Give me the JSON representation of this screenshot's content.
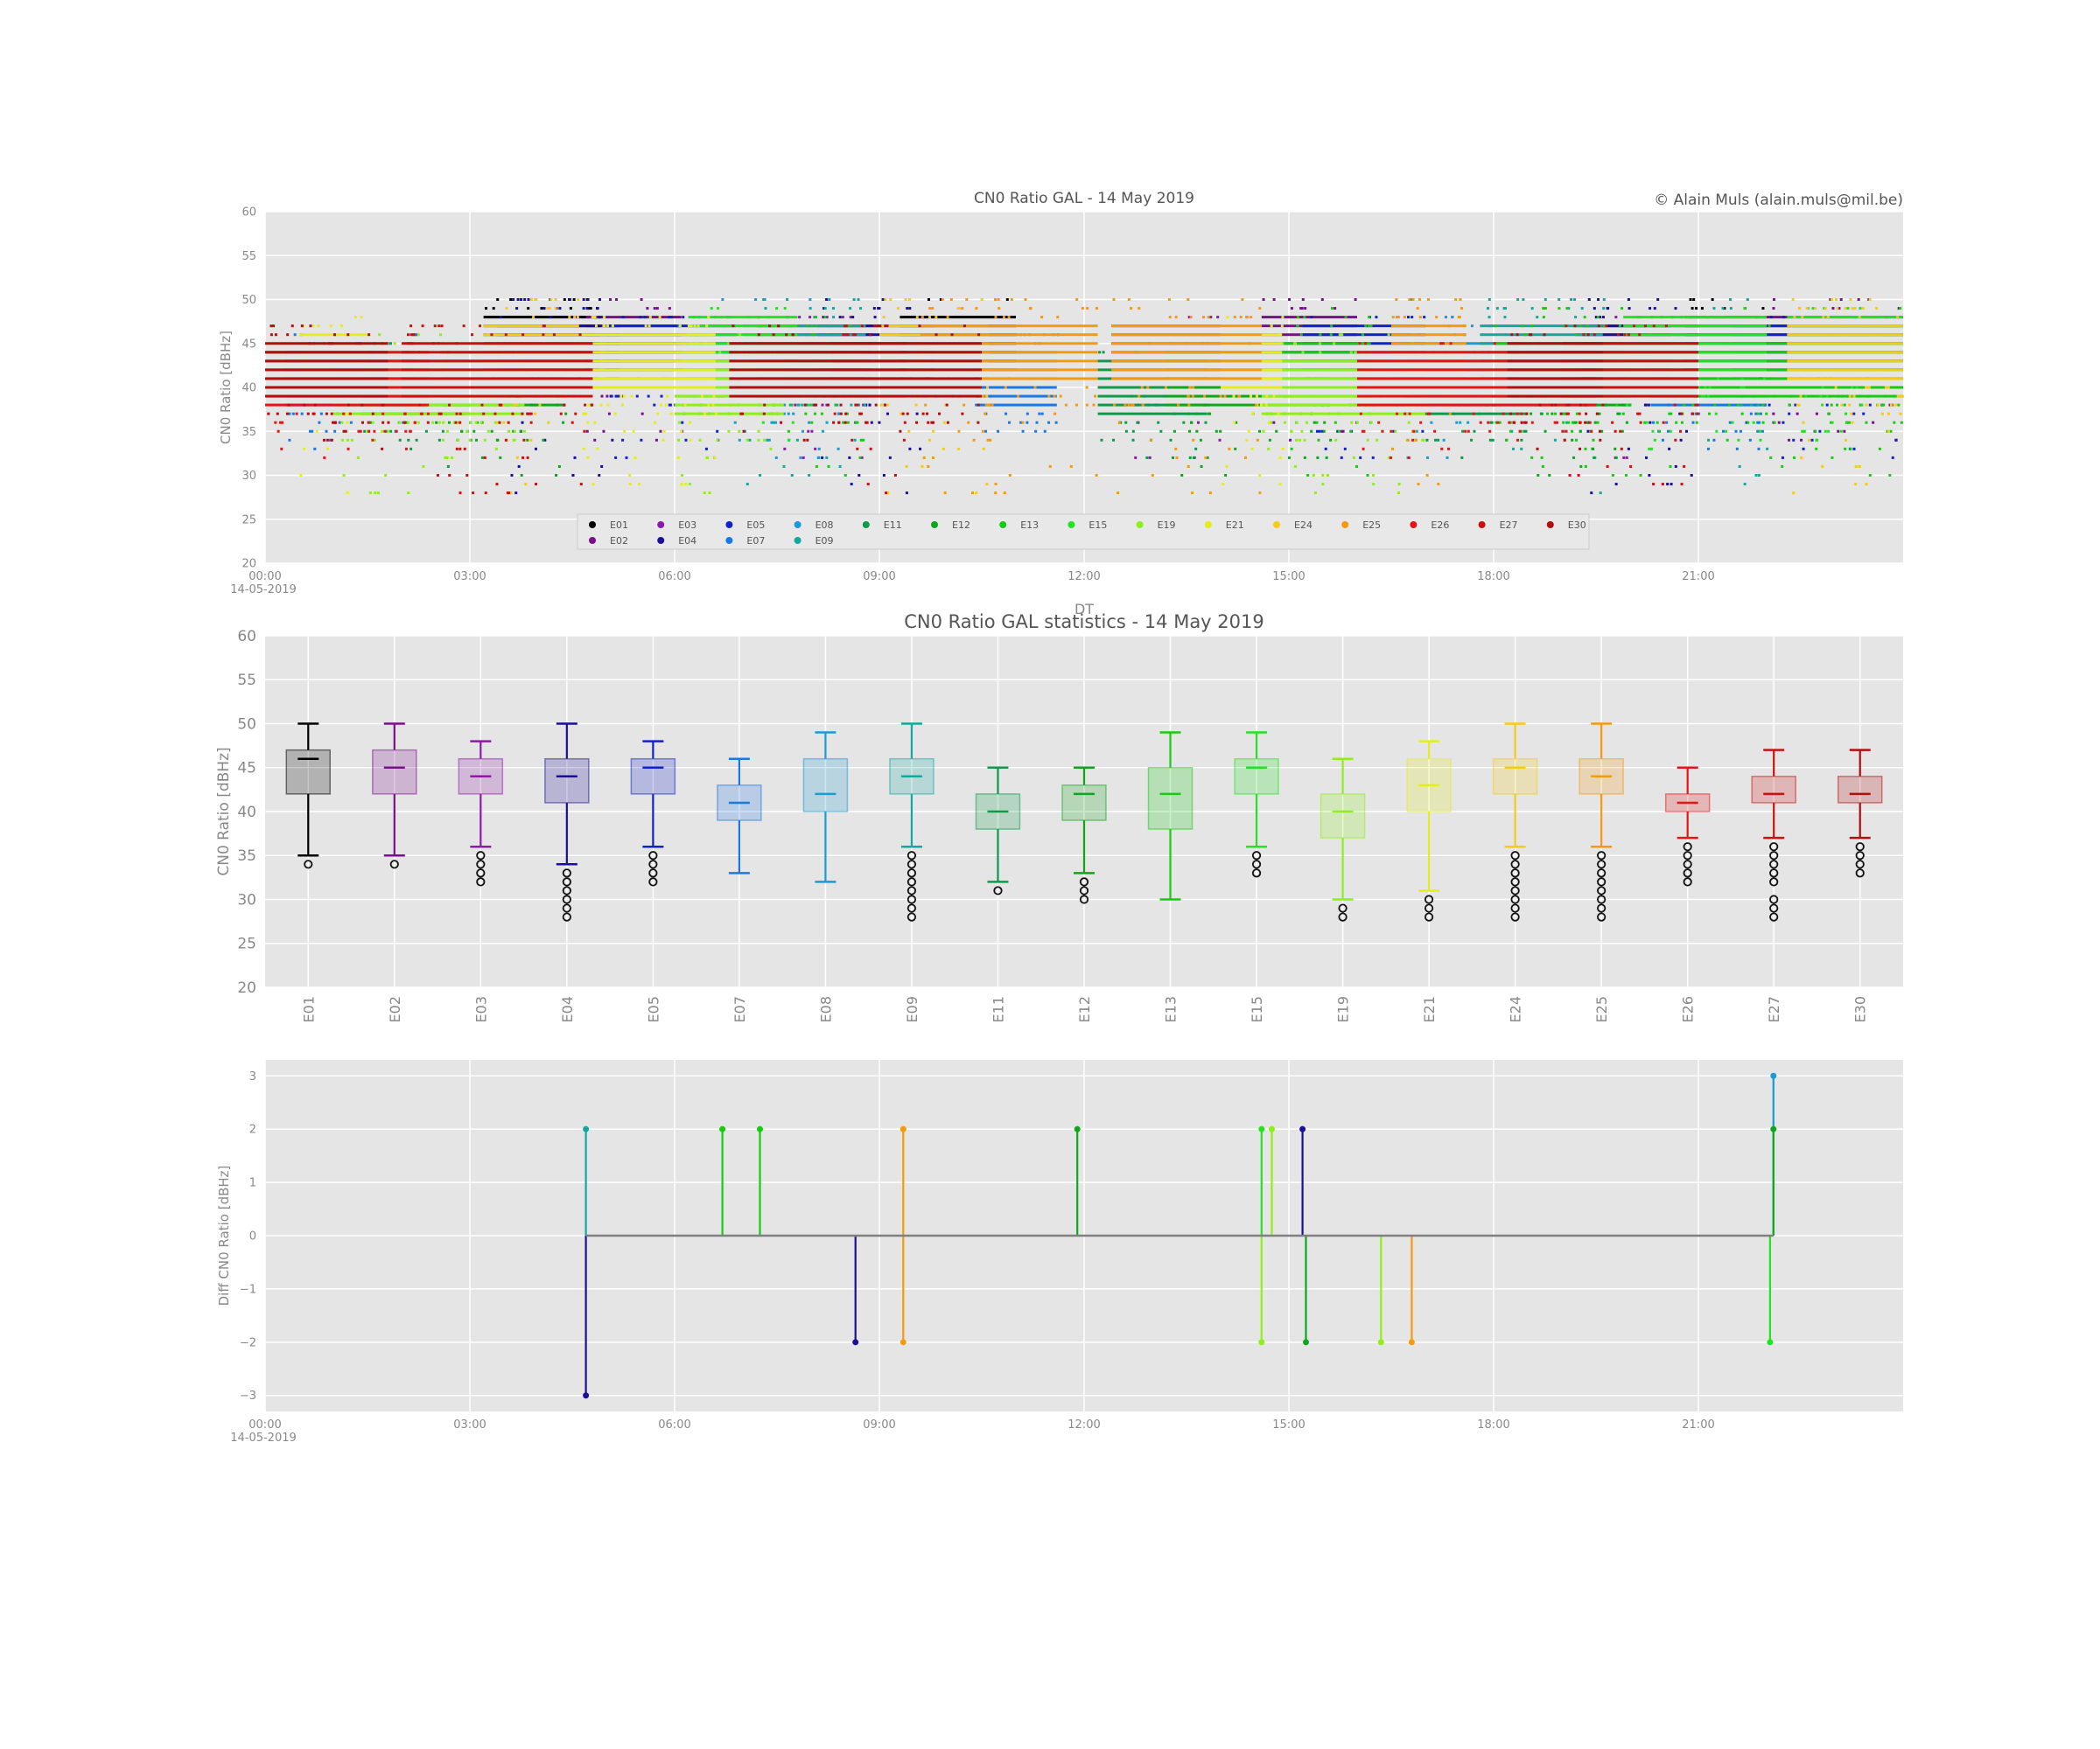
{
  "copyright": "© Alain Muls (alain.muls@mil.be)",
  "colors": {
    "E01": "#000000",
    "E02": "#7a0f8c",
    "E03": "#8b1aa8",
    "E04": "#1a0f99",
    "E05": "#0f22cc",
    "E07": "#1a78e6",
    "E08": "#1a9ad6",
    "E09": "#12a89e",
    "E11": "#0d9a4a",
    "E12": "#0ea71c",
    "E13": "#16cc0f",
    "E15": "#1fe51f",
    "E19": "#8ef01a",
    "E21": "#e6ee1a",
    "E24": "#f5cc14",
    "E25": "#f59a0f",
    "E26": "#e61414",
    "E27": "#cc0f0f",
    "E30": "#b30d0d"
  },
  "chart_data": [
    {
      "type": "scatter",
      "title": "CN0 Ratio GAL - 14 May 2019",
      "xlabel": "DT",
      "ylabel": "CN0 Ratio [dBHz]",
      "ylim": [
        20,
        60
      ],
      "yticks": [
        "20",
        "25",
        "30",
        "35",
        "40",
        "45",
        "50",
        "55",
        "60"
      ],
      "xticks": [
        "00:00",
        "03:00",
        "06:00",
        "09:00",
        "12:00",
        "15:00",
        "18:00",
        "21:00"
      ],
      "xdate": "14-05-2019",
      "legend_position": "lower-center",
      "legend": [
        "E01",
        "E02",
        "E03",
        "E04",
        "E05",
        "E07",
        "E08",
        "E09",
        "E11",
        "E12",
        "E13",
        "E15",
        "E19",
        "E21",
        "E24",
        "E25",
        "E26",
        "E27",
        "E30"
      ],
      "series": [
        {
          "name": "E01",
          "intervals": [
            [
              3.2,
              4.9
            ],
            [
              9.3,
              11.0
            ],
            [
              20.8,
              22.0
            ]
          ],
          "levels": [
            38,
            50
          ],
          "mean": 45
        },
        {
          "name": "E02",
          "intervals": [
            [
              4.7,
              6.1
            ],
            [
              14.6,
              16.0
            ],
            [
              22.0,
              24.0
            ]
          ],
          "levels": [
            34,
            50
          ],
          "mean": 45
        },
        {
          "name": "E03",
          "intervals": [
            [
              7.2,
              8.9
            ],
            [
              12.4,
              14.0
            ],
            [
              19.2,
              20.6
            ]
          ],
          "levels": [
            32,
            48
          ],
          "mean": 44
        },
        {
          "name": "E04",
          "intervals": [
            [
              3.4,
              5.2
            ],
            [
              8.1,
              9.8
            ],
            [
              19.3,
              21.0
            ]
          ],
          "levels": [
            28,
            50
          ],
          "mean": 44
        },
        {
          "name": "E05",
          "intervals": [
            [
              5.0,
              6.9
            ],
            [
              15.2,
              17.0
            ],
            [
              21.5,
              24.0
            ]
          ],
          "levels": [
            32,
            48
          ],
          "mean": 44
        },
        {
          "name": "E07",
          "intervals": [
            [
              0.3,
              2.2
            ],
            [
              10.4,
              11.6
            ],
            [
              20.3,
              22.0
            ]
          ],
          "levels": [
            33,
            46
          ],
          "mean": 41
        },
        {
          "name": "E08",
          "intervals": [
            [
              6.0,
              8.4
            ],
            [
              16.7,
              18.3
            ]
          ],
          "levels": [
            32,
            50
          ],
          "mean": 42
        },
        {
          "name": "E09",
          "intervals": [
            [
              7.0,
              8.8
            ],
            [
              17.8,
              19.6
            ],
            [
              21.0,
              22.0
            ]
          ],
          "levels": [
            28,
            50
          ],
          "mean": 44
        },
        {
          "name": "E11",
          "intervals": [
            [
              1.4,
              3.0
            ],
            [
              12.2,
              13.8
            ],
            [
              17.0,
              18.5
            ]
          ],
          "levels": [
            31,
            45
          ],
          "mean": 40
        },
        {
          "name": "E12",
          "intervals": [
            [
              2.6,
              4.4
            ],
            [
              13.2,
              15.6
            ],
            [
              18.5,
              20.0
            ]
          ],
          "levels": [
            30,
            45
          ],
          "mean": 41
        },
        {
          "name": "E13",
          "intervals": [
            [
              7.2,
              8.8
            ],
            [
              14.9,
              16.2
            ],
            [
              18.0,
              24.0
            ]
          ],
          "levels": [
            30,
            49
          ],
          "mean": 42
        },
        {
          "name": "E15",
          "intervals": [
            [
              6.2,
              7.8
            ],
            [
              19.9,
              22.0
            ],
            [
              22.3,
              24.0
            ]
          ],
          "levels": [
            33,
            49
          ],
          "mean": 45
        },
        {
          "name": "E19",
          "intervals": [
            [
              1.0,
              3.8
            ],
            [
              6.0,
              7.6
            ],
            [
              14.6,
              17.0
            ]
          ],
          "levels": [
            28,
            46
          ],
          "mean": 40
        },
        {
          "name": "E21",
          "intervals": [
            [
              0.5,
              1.5
            ],
            [
              4.6,
              6.6
            ],
            [
              14.0,
              14.9
            ]
          ],
          "levels": [
            28,
            48
          ],
          "mean": 43
        },
        {
          "name": "E24",
          "intervals": [
            [
              3.2,
              4.6
            ],
            [
              9.0,
              10.6
            ],
            [
              22.3,
              24.0
            ]
          ],
          "levels": [
            28,
            50
          ],
          "mean": 44
        },
        {
          "name": "E25",
          "intervals": [
            [
              9.6,
              12.2
            ],
            [
              12.4,
              14.6
            ],
            [
              16.5,
              17.6
            ]
          ],
          "levels": [
            28,
            50
          ],
          "mean": 44
        },
        {
          "name": "E26",
          "intervals": [
            [
              0.0,
              2.4
            ],
            [
              16.0,
              19.5
            ]
          ],
          "levels": [
            32,
            45
          ],
          "mean": 41
        },
        {
          "name": "E27",
          "intervals": [
            [
              2.0,
              4.8
            ],
            [
              8.3,
              9.4
            ],
            [
              19.0,
              21.0
            ]
          ],
          "levels": [
            28,
            47
          ],
          "mean": 42
        },
        {
          "name": "E30",
          "intervals": [
            [
              0.0,
              1.8
            ],
            [
              6.8,
              10.5
            ],
            [
              18.2,
              19.6
            ]
          ],
          "levels": [
            33,
            47
          ],
          "mean": 42
        }
      ]
    },
    {
      "type": "box",
      "title": "CN0 Ratio GAL statistics - 14 May 2019",
      "ylabel": "CN0 Ratio [dBHz]",
      "ylim": [
        20,
        60
      ],
      "yticks": [
        "20",
        "25",
        "30",
        "35",
        "40",
        "45",
        "50",
        "55",
        "60"
      ],
      "boxes": [
        {
          "name": "E01",
          "whislo": 35,
          "q1": 42,
          "med": 46,
          "q3": 47,
          "whishi": 50,
          "fliers": [
            34
          ]
        },
        {
          "name": "E02",
          "whislo": 35,
          "q1": 42,
          "med": 45,
          "q3": 47,
          "whishi": 50,
          "fliers": [
            34
          ]
        },
        {
          "name": "E03",
          "whislo": 36,
          "q1": 42,
          "med": 44,
          "q3": 46,
          "whishi": 48,
          "fliers": [
            35,
            34,
            33,
            32
          ]
        },
        {
          "name": "E04",
          "whislo": 34,
          "q1": 41,
          "med": 44,
          "q3": 46,
          "whishi": 50,
          "fliers": [
            33,
            32,
            31,
            30,
            29,
            28
          ]
        },
        {
          "name": "E05",
          "whislo": 36,
          "q1": 42,
          "med": 45,
          "q3": 46,
          "whishi": 48,
          "fliers": [
            35,
            34,
            33,
            32
          ]
        },
        {
          "name": "E07",
          "whislo": 33,
          "q1": 39,
          "med": 41,
          "q3": 43,
          "whishi": 46,
          "fliers": []
        },
        {
          "name": "E08",
          "whislo": 32,
          "q1": 40,
          "med": 42,
          "q3": 46,
          "whishi": 49,
          "fliers": []
        },
        {
          "name": "E09",
          "whislo": 36,
          "q1": 42,
          "med": 44,
          "q3": 46,
          "whishi": 50,
          "fliers": [
            35,
            34,
            33,
            32,
            31,
            30,
            29,
            28
          ]
        },
        {
          "name": "E11",
          "whislo": 32,
          "q1": 38,
          "med": 40,
          "q3": 42,
          "whishi": 45,
          "fliers": [
            31
          ]
        },
        {
          "name": "E12",
          "whislo": 33,
          "q1": 39,
          "med": 42,
          "q3": 43,
          "whishi": 45,
          "fliers": [
            32,
            31,
            30
          ]
        },
        {
          "name": "E13",
          "whislo": 30,
          "q1": 38,
          "med": 42,
          "q3": 45,
          "whishi": 49,
          "fliers": []
        },
        {
          "name": "E15",
          "whislo": 36,
          "q1": 42,
          "med": 45,
          "q3": 46,
          "whishi": 49,
          "fliers": [
            35,
            34,
            33
          ]
        },
        {
          "name": "E19",
          "whislo": 30,
          "q1": 37,
          "med": 40,
          "q3": 42,
          "whishi": 46,
          "fliers": [
            29,
            28
          ]
        },
        {
          "name": "E21",
          "whislo": 31,
          "q1": 40,
          "med": 43,
          "q3": 46,
          "whishi": 48,
          "fliers": [
            30,
            29,
            28
          ]
        },
        {
          "name": "E24",
          "whislo": 36,
          "q1": 42,
          "med": 45,
          "q3": 46,
          "whishi": 50,
          "fliers": [
            35,
            34,
            33,
            32,
            31,
            30,
            29,
            28
          ]
        },
        {
          "name": "E25",
          "whislo": 36,
          "q1": 42,
          "med": 44,
          "q3": 46,
          "whishi": 50,
          "fliers": [
            35,
            34,
            33,
            32,
            31,
            30,
            29,
            28
          ]
        },
        {
          "name": "E26",
          "whislo": 37,
          "q1": 40,
          "med": 41,
          "q3": 42,
          "whishi": 45,
          "fliers": [
            36,
            35,
            34,
            33,
            32
          ]
        },
        {
          "name": "E27",
          "whislo": 37,
          "q1": 41,
          "med": 42,
          "q3": 44,
          "whishi": 47,
          "fliers": [
            36,
            35,
            34,
            33,
            32,
            30,
            29,
            28
          ]
        },
        {
          "name": "E30",
          "whislo": 37,
          "q1": 41,
          "med": 42,
          "q3": 44,
          "whishi": 47,
          "fliers": [
            36,
            35,
            34,
            33
          ]
        }
      ]
    },
    {
      "type": "stem",
      "ylabel": "Diff CN0 Ratio [dBHz]",
      "ylim": [
        -3.3,
        3.3
      ],
      "yticks": [
        "−3",
        "−2",
        "−1",
        "0",
        "1",
        "2",
        "3"
      ],
      "xticks": [
        "00:00",
        "03:00",
        "06:00",
        "09:00",
        "12:00",
        "15:00",
        "18:00",
        "21:00"
      ],
      "xdate": "14-05-2019",
      "baseline": [
        4.7,
        22.1
      ],
      "points": [
        {
          "sv": "E09",
          "x": 4.7,
          "y": 2
        },
        {
          "sv": "E04",
          "x": 4.7,
          "y": -3
        },
        {
          "sv": "E13",
          "x": 6.7,
          "y": 2
        },
        {
          "sv": "E13",
          "x": 7.25,
          "y": 2
        },
        {
          "sv": "E04",
          "x": 8.65,
          "y": -2
        },
        {
          "sv": "E25",
          "x": 9.35,
          "y": 2
        },
        {
          "sv": "E25",
          "x": 9.35,
          "y": -2
        },
        {
          "sv": "E12",
          "x": 11.9,
          "y": 2
        },
        {
          "sv": "E15",
          "x": 14.6,
          "y": 2
        },
        {
          "sv": "E19",
          "x": 14.6,
          "y": -2
        },
        {
          "sv": "E19",
          "x": 14.75,
          "y": 2
        },
        {
          "sv": "E04",
          "x": 15.2,
          "y": 2
        },
        {
          "sv": "E12",
          "x": 15.25,
          "y": -2
        },
        {
          "sv": "E19",
          "x": 16.35,
          "y": -2
        },
        {
          "sv": "E25",
          "x": 16.8,
          "y": -2
        },
        {
          "sv": "E15",
          "x": 22.05,
          "y": -2
        },
        {
          "sv": "E08",
          "x": 22.1,
          "y": 3
        },
        {
          "sv": "E12",
          "x": 22.1,
          "y": 2
        }
      ]
    }
  ]
}
